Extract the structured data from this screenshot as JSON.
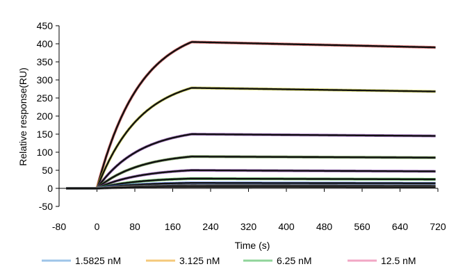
{
  "chart_data": {
    "type": "line",
    "title": "",
    "xlabel": "Time (s)",
    "ylabel": "Relative response(RU)",
    "xlim": [
      -80,
      720
    ],
    "ylim": [
      -50,
      450
    ],
    "xticks": [
      -80,
      0,
      80,
      160,
      240,
      320,
      400,
      480,
      560,
      640,
      720
    ],
    "yticks": [
      -50,
      0,
      50,
      100,
      150,
      200,
      250,
      300,
      350,
      400,
      450
    ],
    "xtick_labels": [
      "-80",
      "0",
      "80",
      "160",
      "240",
      "320",
      "400",
      "480",
      "560",
      "640",
      "720"
    ],
    "ytick_labels": [
      "-50",
      "0",
      "50",
      "100",
      "150",
      "200",
      "250",
      "300",
      "350",
      "400",
      "450"
    ],
    "grid": false,
    "legend_position": "bottom",
    "legend": [
      {
        "name": "1.5825 nM",
        "color": "#9ec4e8"
      },
      {
        "name": "3.125 nM",
        "color": "#f4c87a"
      },
      {
        "name": "6.25 nM",
        "color": "#8fd49a"
      },
      {
        "name": "12.5 nM",
        "color": "#f2a6c4"
      }
    ],
    "series": [
      {
        "plateau": 405,
        "end": 390,
        "color": "#d64a4a"
      },
      {
        "plateau": 278,
        "end": 268,
        "color": "#c9c93a"
      },
      {
        "plateau": 150,
        "end": 145,
        "color": "#8a4ab0"
      },
      {
        "plateau": 88,
        "end": 85,
        "color": "#5a8a3a"
      },
      {
        "plateau": 50,
        "end": 47,
        "color": "#8a4ab0"
      },
      {
        "plateau": 27,
        "end": 25,
        "color": "#3aa03a"
      },
      {
        "plateau": 15,
        "end": 14,
        "color": "#3a6ad6"
      },
      {
        "plateau": 8,
        "end": 7,
        "color": "#888888"
      },
      {
        "plateau": 4,
        "end": 3,
        "color": "#888888"
      }
    ],
    "injection_start": 0,
    "injection_end": 200,
    "time_start": -65,
    "time_end": 715
  }
}
